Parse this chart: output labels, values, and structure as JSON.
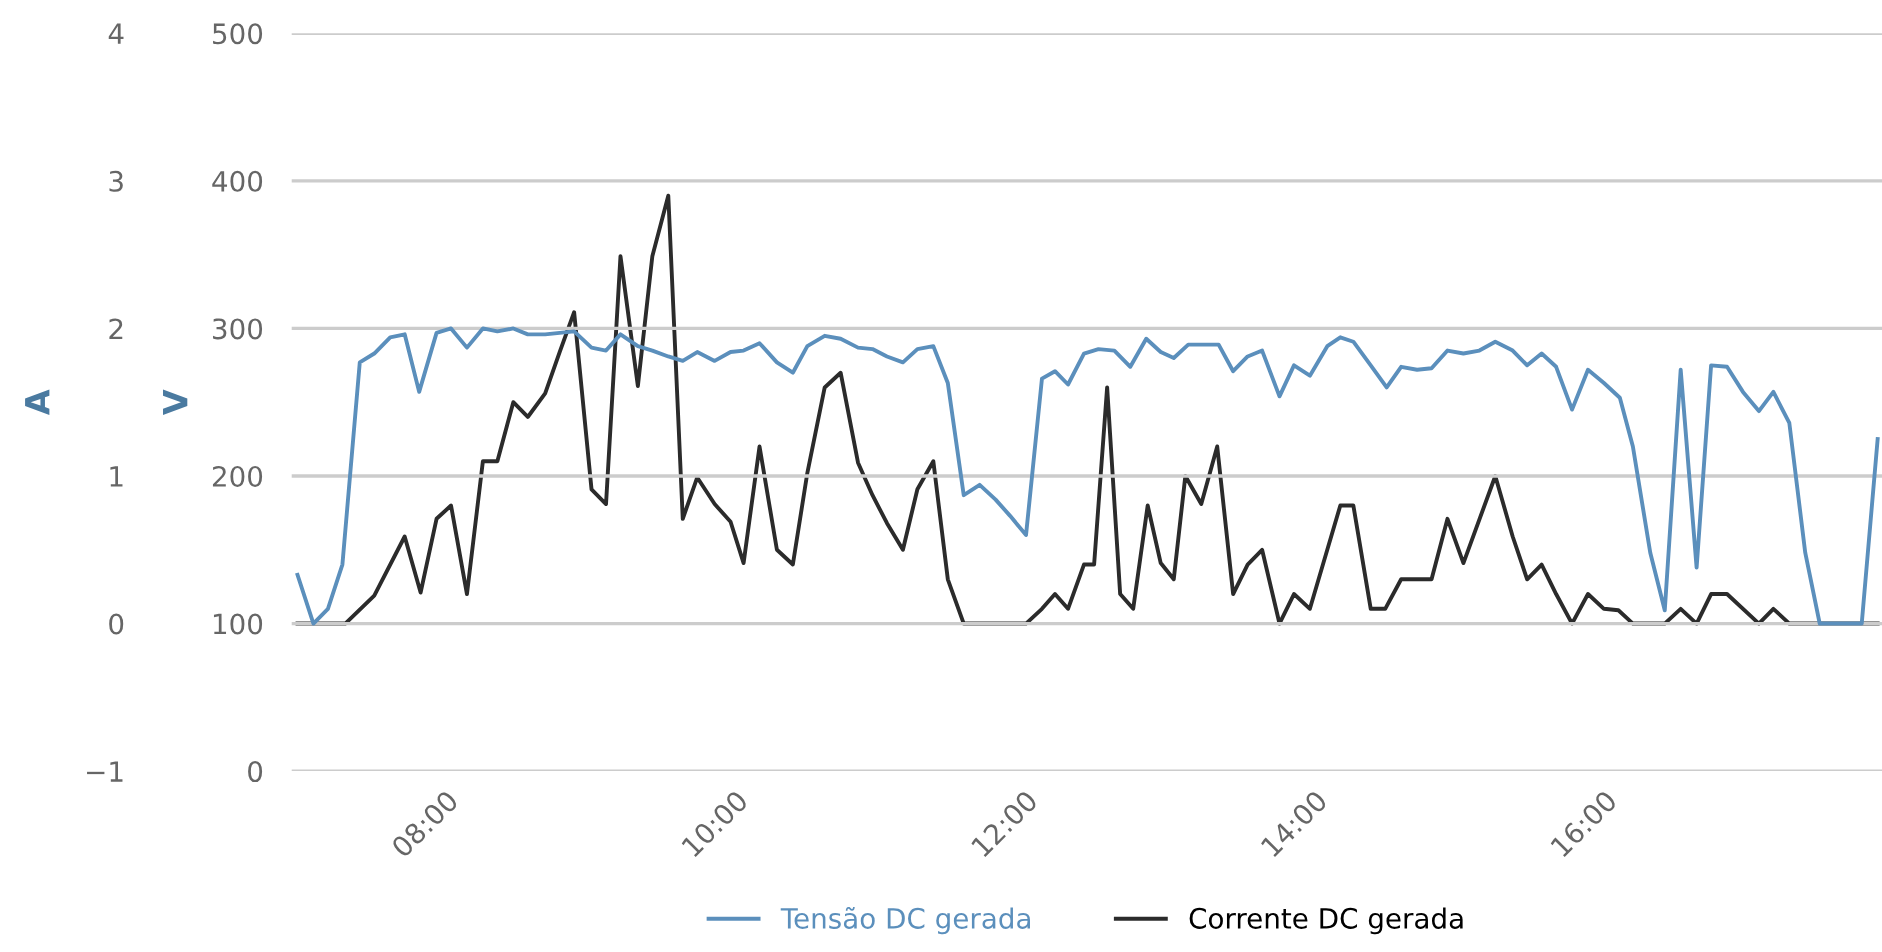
{
  "chart_data": {
    "type": "line",
    "ylabel": "V",
    "y2label": "A",
    "xlim": [
      6.94,
      17.92
    ],
    "xticks": [
      {
        "value": 8,
        "label": "08:00"
      },
      {
        "value": 10,
        "label": "10:00"
      },
      {
        "value": 12,
        "label": "12:00"
      },
      {
        "value": 14,
        "label": "14:00"
      },
      {
        "value": 16,
        "label": "16:00"
      }
    ],
    "ylim": [
      0,
      500
    ],
    "yticks": [
      0,
      100,
      200,
      300,
      400,
      500
    ],
    "y2lim": [
      -1,
      4
    ],
    "y2ticks": [
      -1,
      0,
      1,
      2,
      3,
      4
    ],
    "grid": "y",
    "legend": "bottom",
    "marker": "none",
    "line_style": "solid",
    "series": [
      {
        "name": "Tensão DC gerada",
        "color": "#5b8fbc",
        "x": [
          6.98,
          7.09,
          7.19,
          7.29,
          7.41,
          7.51,
          7.62,
          7.72,
          7.82,
          7.94,
          8.04,
          8.15,
          8.26,
          8.36,
          8.47,
          8.57,
          8.69,
          8.79,
          8.89,
          9.01,
          9.11,
          9.21,
          9.33,
          9.43,
          9.54,
          9.64,
          9.74,
          9.86,
          9.97,
          10.06,
          10.17,
          10.29,
          10.4,
          10.5,
          10.62,
          10.73,
          10.85,
          10.95,
          11.05,
          11.16,
          11.26,
          11.37,
          11.47,
          11.58,
          11.69,
          11.8,
          11.9,
          12.01,
          12.12,
          12.21,
          12.3,
          12.41,
          12.51,
          12.62,
          12.73,
          12.84,
          12.94,
          13.03,
          13.13,
          13.24,
          13.34,
          13.44,
          13.54,
          13.64,
          13.76,
          13.86,
          13.97,
          14.09,
          14.18,
          14.27,
          14.39,
          14.5,
          14.6,
          14.71,
          14.81,
          14.92,
          15.03,
          15.14,
          15.25,
          15.37,
          15.47,
          15.57,
          15.67,
          15.78,
          15.89,
          16.0,
          16.11,
          16.2,
          16.32,
          16.42,
          16.53,
          16.64,
          16.74,
          16.85,
          16.96,
          17.07,
          17.17,
          17.28,
          17.39,
          17.49,
          17.58,
          17.78,
          17.89
        ],
        "values": [
          133,
          100,
          110,
          140,
          277,
          283,
          294,
          296,
          257,
          297,
          300,
          287,
          300,
          298,
          300,
          296,
          296,
          297,
          298,
          287,
          285,
          296,
          288,
          285,
          281,
          278,
          284,
          278,
          284,
          285,
          290,
          277,
          270,
          288,
          295,
          293,
          287,
          286,
          281,
          277,
          286,
          288,
          263,
          187,
          194,
          184,
          173,
          160,
          266,
          271,
          262,
          283,
          286,
          285,
          274,
          293,
          284,
          280,
          289,
          289,
          289,
          271,
          281,
          285,
          254,
          275,
          268,
          288,
          294,
          291,
          275,
          260,
          274,
          272,
          273,
          285,
          283,
          285,
          291,
          285,
          275,
          283,
          274,
          245,
          272,
          263,
          253,
          220,
          148,
          109,
          272,
          138,
          275,
          274,
          257,
          244,
          257,
          236,
          148,
          100,
          100,
          100,
          225
        ]
      },
      {
        "name": "Corrente DC gerada",
        "color": "#2b2b2b",
        "axis": "y2",
        "x": [
          6.98,
          7.31,
          7.51,
          7.72,
          7.83,
          7.94,
          8.04,
          8.15,
          8.26,
          8.36,
          8.47,
          8.57,
          8.69,
          8.79,
          8.89,
          9.01,
          9.11,
          9.21,
          9.33,
          9.43,
          9.54,
          9.64,
          9.74,
          9.86,
          9.97,
          10.06,
          10.17,
          10.29,
          10.4,
          10.5,
          10.62,
          10.73,
          10.85,
          10.95,
          11.05,
          11.16,
          11.26,
          11.37,
          11.47,
          11.58,
          12.01,
          12.12,
          12.21,
          12.3,
          12.41,
          12.48,
          12.57,
          12.66,
          12.75,
          12.85,
          12.94,
          13.03,
          13.11,
          13.22,
          13.33,
          13.44,
          13.54,
          13.64,
          13.76,
          13.86,
          13.97,
          14.09,
          14.18,
          14.27,
          14.39,
          14.49,
          14.6,
          14.81,
          14.92,
          15.03,
          15.25,
          15.37,
          15.47,
          15.57,
          15.67,
          15.78,
          15.89,
          16.0,
          16.1,
          16.2,
          16.42,
          16.53,
          16.64,
          16.74,
          16.85,
          17.07,
          17.17,
          17.28,
          17.89
        ],
        "values": [
          0,
          0,
          0.19,
          0.59,
          0.21,
          0.71,
          0.8,
          0.2,
          1.1,
          1.1,
          1.5,
          1.4,
          1.56,
          1.84,
          2.11,
          0.91,
          0.81,
          2.49,
          1.61,
          2.49,
          2.9,
          0.71,
          0.99,
          0.81,
          0.69,
          0.41,
          1.2,
          0.5,
          0.4,
          1.02,
          1.6,
          1.7,
          1.09,
          0.87,
          0.68,
          0.5,
          0.91,
          1.1,
          0.3,
          0,
          0,
          0.1,
          0.2,
          0.1,
          0.4,
          0.4,
          1.6,
          0.2,
          0.1,
          0.8,
          0.41,
          0.3,
          1.0,
          0.81,
          1.2,
          0.2,
          0.4,
          0.5,
          0,
          0.2,
          0.1,
          0.5,
          0.8,
          0.8,
          0.1,
          0.1,
          0.3,
          0.3,
          0.71,
          0.41,
          1.0,
          0.59,
          0.3,
          0.4,
          0.2,
          0,
          0.2,
          0.1,
          0.09,
          0,
          0,
          0.1,
          0,
          0.2,
          0.2,
          0,
          0.1,
          0,
          0
        ]
      }
    ]
  }
}
